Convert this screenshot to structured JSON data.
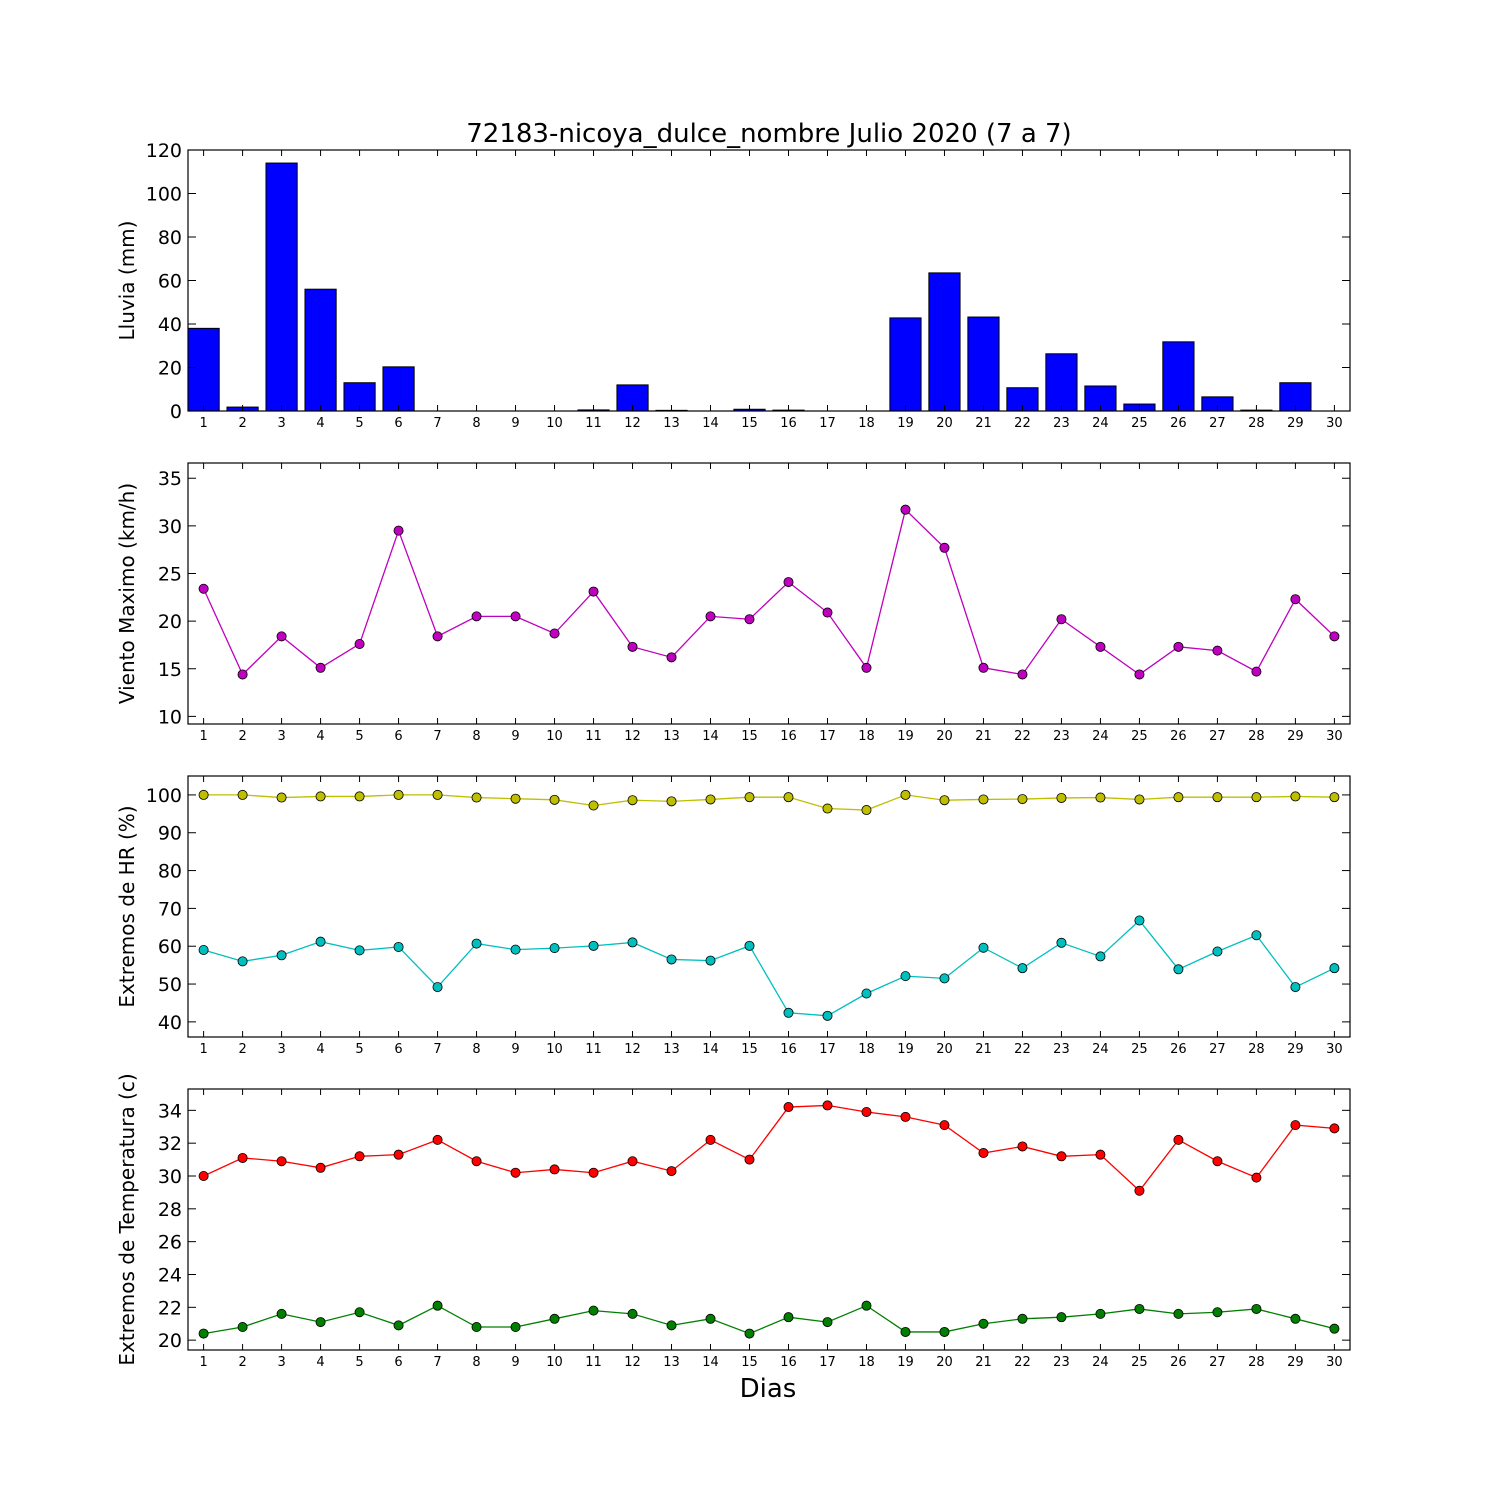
{
  "title": "72183-nicoya_dulce_nombre Julio 2020  (7 a 7)",
  "xlabel": "Dias",
  "chart_data": [
    {
      "type": "bar",
      "title": "72183-nicoya_dulce_nombre Julio 2020  (7 a 7)",
      "xlabel": "",
      "ylabel": "Lluvia (mm)",
      "ylim": [
        0,
        120
      ],
      "yticks": [
        0,
        20,
        40,
        60,
        80,
        100,
        120
      ],
      "xlim": [
        0.6,
        30.4
      ],
      "grid": false,
      "color": "#0000ff",
      "categories": [
        1,
        2,
        3,
        4,
        5,
        6,
        7,
        8,
        9,
        10,
        11,
        12,
        13,
        14,
        15,
        16,
        17,
        18,
        19,
        20,
        21,
        22,
        23,
        24,
        25,
        26,
        27,
        28,
        29,
        30
      ],
      "values": [
        38.0,
        1.8,
        114.0,
        56.0,
        13.0,
        20.3,
        0.0,
        0.0,
        0.0,
        0.0,
        0.5,
        12.0,
        0.3,
        0.0,
        0.8,
        0.4,
        0.0,
        0.0,
        42.8,
        63.5,
        43.2,
        10.7,
        26.3,
        11.5,
        3.2,
        31.8,
        6.5,
        0.4,
        13.0,
        0.0
      ]
    },
    {
      "type": "line",
      "ylabel": "Viento Maximo (km/h)",
      "ylim": [
        9.2,
        36.6
      ],
      "yticks": [
        10,
        15,
        20,
        25,
        30,
        35
      ],
      "xlim": [
        0.6,
        30.4
      ],
      "grid": false,
      "x": [
        1,
        2,
        3,
        4,
        5,
        6,
        7,
        8,
        9,
        10,
        11,
        12,
        13,
        14,
        15,
        16,
        17,
        18,
        19,
        20,
        21,
        22,
        23,
        24,
        25,
        26,
        27,
        28,
        29,
        30
      ],
      "series": [
        {
          "color": "#bf00bf",
          "values": [
            23.4,
            14.4,
            18.4,
            15.1,
            17.6,
            29.5,
            18.4,
            20.5,
            20.5,
            18.7,
            23.1,
            17.3,
            16.2,
            20.5,
            20.2,
            24.1,
            20.9,
            15.1,
            31.7,
            27.7,
            15.1,
            14.4,
            20.2,
            17.3,
            14.4,
            17.3,
            16.9,
            14.7,
            22.3,
            18.4
          ]
        }
      ]
    },
    {
      "type": "line",
      "ylabel": "Extremos de HR (%)",
      "ylim": [
        36,
        105
      ],
      "yticks": [
        40,
        50,
        60,
        70,
        80,
        90,
        100
      ],
      "xlim": [
        0.6,
        30.4
      ],
      "grid": false,
      "x": [
        1,
        2,
        3,
        4,
        5,
        6,
        7,
        8,
        9,
        10,
        11,
        12,
        13,
        14,
        15,
        16,
        17,
        18,
        19,
        20,
        21,
        22,
        23,
        24,
        25,
        26,
        27,
        28,
        29,
        30
      ],
      "series": [
        {
          "color": "#bfbf00",
          "values": [
            100.0,
            100.0,
            99.3,
            99.6,
            99.6,
            100.0,
            100.0,
            99.3,
            99.0,
            98.7,
            97.2,
            98.6,
            98.3,
            98.8,
            99.4,
            99.4,
            96.4,
            96.0,
            100.0,
            98.6,
            98.8,
            98.9,
            99.2,
            99.3,
            98.8,
            99.4,
            99.4,
            99.4,
            99.6,
            99.4
          ]
        },
        {
          "color": "#00bfbf",
          "values": [
            59.0,
            56.0,
            57.6,
            61.2,
            58.9,
            59.8,
            49.2,
            60.7,
            59.1,
            59.5,
            60.1,
            61.0,
            56.5,
            56.2,
            60.1,
            42.4,
            41.6,
            47.5,
            52.1,
            51.5,
            59.6,
            54.2,
            60.9,
            57.3,
            66.8,
            53.9,
            58.6,
            62.9,
            49.2,
            54.2
          ]
        }
      ]
    },
    {
      "type": "line",
      "ylabel": "Extremos de Temperatura (c)",
      "ylim": [
        19.4,
        35.3
      ],
      "yticks": [
        20,
        22,
        24,
        26,
        28,
        30,
        32,
        34
      ],
      "xlim": [
        0.6,
        30.4
      ],
      "xlabel": "Dias",
      "grid": false,
      "x": [
        1,
        2,
        3,
        4,
        5,
        6,
        7,
        8,
        9,
        10,
        11,
        12,
        13,
        14,
        15,
        16,
        17,
        18,
        19,
        20,
        21,
        22,
        23,
        24,
        25,
        26,
        27,
        28,
        29,
        30
      ],
      "series": [
        {
          "color": "#ff0000",
          "values": [
            30.0,
            31.1,
            30.9,
            30.5,
            31.2,
            31.3,
            32.2,
            30.9,
            30.2,
            30.4,
            30.2,
            30.9,
            30.3,
            32.2,
            31.0,
            34.2,
            34.3,
            33.9,
            33.6,
            33.1,
            31.4,
            31.8,
            31.2,
            31.3,
            29.1,
            32.2,
            30.9,
            29.9,
            33.1,
            32.9
          ]
        },
        {
          "color": "#007f00",
          "values": [
            20.4,
            20.8,
            21.6,
            21.1,
            21.7,
            20.9,
            22.1,
            20.8,
            20.8,
            21.3,
            21.8,
            21.6,
            20.9,
            21.3,
            20.4,
            21.4,
            21.1,
            22.1,
            20.5,
            20.5,
            21.0,
            21.3,
            21.4,
            21.6,
            21.9,
            21.6,
            21.7,
            21.9,
            21.3,
            20.7
          ]
        }
      ]
    }
  ]
}
